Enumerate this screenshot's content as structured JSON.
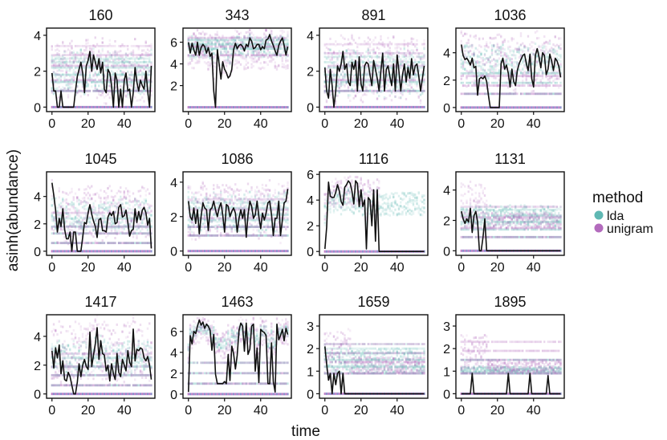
{
  "chart_data": {
    "type": "line",
    "xlabel": "time",
    "ylabel": "asinh(abundance)",
    "x_ticks": [
      0,
      20,
      40
    ],
    "xlim": [
      -3,
      57
    ],
    "legend": {
      "title": "method",
      "placement": "right",
      "entries": [
        {
          "name": "lda",
          "color": "#5fb8b3"
        },
        {
          "name": "unigram",
          "color": "#b36bbd"
        }
      ]
    },
    "line_color": "#111111",
    "panels": [
      {
        "title": "160",
        "ylim": [
          -0.25,
          4.4
        ],
        "y_ticks": [
          0,
          2,
          4
        ],
        "observed": [
          1.9,
          0.9,
          0.9,
          0,
          0,
          0.9,
          0,
          0,
          0,
          0,
          0,
          0,
          0,
          0.9,
          1.7,
          2.1,
          2.5,
          1.9,
          0.8,
          2.3,
          2.6,
          3.1,
          2.0,
          2.9,
          2.5,
          2.1,
          2.7,
          1.9,
          2.5,
          1.0,
          0.8,
          2.1,
          1.9,
          1.2,
          0,
          1.9,
          1.5,
          0,
          1.0,
          0,
          1.5,
          1.9,
          0.9,
          1.0,
          0,
          0.8,
          2.2,
          1.4,
          0.9,
          1.5,
          1.2,
          1.0,
          2.0,
          0.9,
          0,
          2.3
        ],
        "bands": [
          {
            "method": "lda",
            "levels": [
              0.9,
              1.4,
              1.8,
              2.2,
              2.5,
              2.7
            ]
          },
          {
            "method": "unigram",
            "levels": [
              0.9,
              1.5,
              2.3,
              2.9,
              3.4
            ]
          }
        ],
        "band_range": [
          {
            "method": "lda",
            "lo": 0.8,
            "hi": 3.1
          },
          {
            "method": "unigram",
            "lo": 0.5,
            "hi": 3.8
          }
        ]
      },
      {
        "title": "343",
        "ylim": [
          -0.4,
          7.3
        ],
        "y_ticks": [
          2,
          4,
          6
        ],
        "observed": [
          6.0,
          5.0,
          5.9,
          5.3,
          4.8,
          6.0,
          4.8,
          5.5,
          5.8,
          5.6,
          5.0,
          5.5,
          4.7,
          5.0,
          1.5,
          0,
          5.3,
          4.0,
          2.6,
          4.2,
          3.5,
          3.2,
          2.7,
          2.9,
          3.5,
          5.3,
          5.9,
          5.4,
          5.7,
          5.8,
          5.6,
          5.2,
          5.8,
          5.6,
          6.4,
          6.1,
          5.4,
          5.5,
          5.8,
          5.8,
          5.3,
          5.6,
          5.4,
          6.2,
          6.3,
          6.7,
          6.1,
          5.7,
          5.2,
          4.8,
          5.7,
          6.1,
          6.4,
          5.7,
          4.8,
          5.6
        ],
        "bands": [
          {
            "method": "lda",
            "levels": [
              5.4,
              5.8,
              6.2
            ]
          },
          {
            "method": "unigram",
            "levels": [
              4.8,
              5.6,
              6.4
            ]
          }
        ],
        "band_range": [
          {
            "method": "lda",
            "lo": 4.6,
            "hi": 6.6
          },
          {
            "method": "unigram",
            "lo": 3.4,
            "hi": 7.0
          }
        ]
      },
      {
        "title": "891",
        "ylim": [
          -0.25,
          4.4
        ],
        "y_ticks": [
          0,
          2,
          4
        ],
        "observed": [
          2.2,
          0.9,
          0.5,
          2.1,
          1.2,
          0,
          0.9,
          2.3,
          2.0,
          2.4,
          3.1,
          2.1,
          2.4,
          1.4,
          1.2,
          2.5,
          2.1,
          2.6,
          0.9,
          2.8,
          1.3,
          0.9,
          2.3,
          2.5,
          2.4,
          1.8,
          1.2,
          2.6,
          2.1,
          1.6,
          0.9,
          2.0,
          3.0,
          0.9,
          2.1,
          2.3,
          1.7,
          1.2,
          2.4,
          0.9,
          2.9,
          2.0,
          0.9,
          1.8,
          2.4,
          1.4,
          2.2,
          1.6,
          2.7,
          1.8,
          2.3,
          2.4,
          1.7,
          0.9,
          1.6,
          2.3
        ],
        "bands": [
          {
            "method": "lda",
            "levels": [
              0.9,
              1.4,
              1.8,
              2.2,
              2.5,
              2.8
            ]
          },
          {
            "method": "unigram",
            "levels": [
              0.9,
              1.5,
              2.3,
              3.0,
              3.5
            ]
          }
        ],
        "band_range": [
          {
            "method": "lda",
            "lo": 0.8,
            "hi": 3.2
          },
          {
            "method": "unigram",
            "lo": 0.5,
            "hi": 4.0
          }
        ]
      },
      {
        "title": "1036",
        "ylim": [
          -0.3,
          5.8
        ],
        "y_ticks": [
          0,
          2,
          4
        ],
        "observed": [
          4.6,
          3.8,
          3.5,
          3.6,
          3.4,
          3.1,
          3.6,
          2.9,
          3.0,
          0.9,
          2.1,
          2.2,
          2.1,
          2.3,
          1.9,
          0.9,
          0,
          0,
          0,
          0,
          0,
          0,
          3.2,
          3.6,
          2.8,
          3.1,
          2.5,
          1.5,
          2.8,
          1.9,
          1.6,
          2.7,
          3.2,
          3.5,
          3.8,
          3.9,
          3.2,
          2.7,
          3.9,
          2.1,
          1.5,
          3.8,
          4.3,
          3.7,
          2.9,
          4.0,
          3.8,
          2.4,
          2.8,
          3.9,
          3.4,
          2.7,
          3.6,
          3.4,
          3.0,
          2.2
        ],
        "bands": [
          {
            "method": "lda",
            "levels": [
              1.0,
              1.8,
              2.5
            ]
          },
          {
            "method": "unigram",
            "levels": [
              1.0,
              1.6,
              2.3
            ]
          }
        ],
        "band_range": [
          {
            "method": "lda",
            "lo": 2.5,
            "hi": 4.6
          },
          {
            "method": "unigram",
            "lo": 1.5,
            "hi": 5.4
          }
        ]
      },
      {
        "title": "1045",
        "ylim": [
          -0.3,
          5.8
        ],
        "y_ticks": [
          0,
          2,
          4
        ],
        "observed": [
          5.0,
          4.1,
          3.0,
          1.4,
          2.4,
          1.8,
          3.1,
          1.6,
          0.9,
          0.9,
          1.4,
          0,
          1.4,
          1.4,
          0,
          0,
          0,
          1.0,
          2.1,
          2.0,
          2.8,
          3.4,
          2.7,
          2.2,
          1.8,
          1.0,
          2.3,
          2.4,
          1.5,
          1.5,
          1.4,
          2.5,
          2.8,
          2.6,
          2.9,
          2.0,
          2.1,
          3.2,
          3.4,
          2.5,
          2.6,
          3.0,
          2.1,
          1.1,
          1.5,
          1.6,
          3.1,
          2.1,
          2.9,
          2.3,
          3.0,
          3.2,
          2.8,
          1.9,
          2.4,
          0.2
        ],
        "bands": [
          {
            "method": "lda",
            "levels": [
              0.6,
              1.3,
              1.8,
              2.4
            ]
          },
          {
            "method": "unigram",
            "levels": [
              0.6,
              1.3,
              1.8,
              2.8
            ]
          }
        ],
        "band_range": [
          {
            "method": "lda",
            "lo": 1.5,
            "hi": 3.8
          },
          {
            "method": "unigram",
            "lo": 1.0,
            "hi": 4.8
          }
        ]
      },
      {
        "title": "1086",
        "ylim": [
          -0.25,
          4.6
        ],
        "y_ticks": [
          0,
          2,
          4
        ],
        "observed": [
          2.9,
          2.0,
          1.8,
          2.5,
          1.6,
          2.4,
          1.0,
          2.0,
          2.8,
          2.5,
          2.4,
          1.2,
          2.4,
          2.5,
          2.9,
          2.4,
          2.0,
          2.5,
          2.8,
          2.1,
          1.1,
          2.7,
          2.6,
          2.0,
          2.3,
          2.5,
          2.2,
          1.1,
          1.9,
          2.4,
          1.9,
          2.4,
          0.8,
          2.1,
          2.9,
          2.6,
          1.9,
          2.1,
          2.9,
          2.0,
          1.3,
          2.2,
          1.8,
          2.2,
          2.8,
          2.9,
          2.1,
          0.9,
          1.9,
          1.9,
          2.9,
          0.9,
          1.8,
          2.8,
          2.9,
          3.6
        ],
        "bands": [
          {
            "method": "lda",
            "levels": [
              0.9,
              1.4,
              1.8,
              2.1,
              2.5,
              2.8
            ]
          },
          {
            "method": "unigram",
            "levels": [
              0.9,
              1.4,
              1.9,
              2.4,
              3.0
            ]
          }
        ],
        "band_range": [
          {
            "method": "lda",
            "lo": 1.2,
            "hi": 3.3
          },
          {
            "method": "unigram",
            "lo": 0.8,
            "hi": 4.0
          }
        ]
      },
      {
        "title": "1116",
        "ylim": [
          -0.3,
          6.2
        ],
        "y_ticks": [
          0,
          2,
          4,
          6
        ],
        "observed": [
          0.2,
          1.9,
          5.4,
          4.3,
          4.2,
          4.2,
          4.6,
          5.2,
          4.7,
          3.9,
          3.6,
          5.0,
          5.2,
          5.5,
          5.3,
          4.7,
          3.7,
          5.5,
          5.3,
          3.5,
          4.8,
          3.5,
          4.0,
          0.2,
          4.2,
          4.0,
          2.0,
          4.8,
          0.8,
          4.8,
          0,
          0,
          0,
          0,
          0,
          0,
          0,
          0,
          0,
          0,
          0,
          0,
          0,
          0,
          0,
          0,
          0,
          0,
          0,
          0,
          0,
          0,
          0,
          0,
          0,
          0
        ],
        "bands": [],
        "band_range": [
          {
            "method": "lda",
            "lo": 2.8,
            "hi": 4.6
          },
          {
            "method": "unigram",
            "lo": 3.5,
            "hi": 5.7
          }
        ]
      },
      {
        "title": "1131",
        "ylim": [
          -0.3,
          5.2
        ],
        "y_ticks": [
          0,
          2,
          4
        ],
        "observed": [
          2.6,
          2.1,
          1.8,
          2.1,
          1.9,
          2.8,
          1.2,
          2.3,
          2.6,
          1.9,
          0,
          0,
          0.9,
          2.1,
          0,
          0,
          0,
          0,
          0,
          0,
          0,
          0,
          0,
          0,
          0,
          0,
          0,
          0,
          0,
          0,
          0,
          0,
          0,
          0,
          0,
          0,
          0,
          0,
          0,
          0,
          0,
          0,
          0,
          0,
          0,
          0,
          0,
          0,
          0,
          0,
          0,
          0,
          0,
          0,
          0,
          0
        ],
        "bands": [
          {
            "method": "lda",
            "levels": [
              0.9,
              1.4,
              1.9,
              2.3,
              2.7
            ]
          },
          {
            "method": "unigram",
            "levels": [
              0.9,
              1.5,
              2.2,
              2.9
            ]
          }
        ],
        "band_range": [
          {
            "method": "lda",
            "lo": 1.6,
            "hi": 3.0
          },
          {
            "method": "unigram",
            "lo": 1.4,
            "hi": 4.6
          }
        ]
      },
      {
        "title": "1417",
        "ylim": [
          -0.3,
          5.5
        ],
        "y_ticks": [
          0,
          2,
          4
        ],
        "observed": [
          3.0,
          1.8,
          3.2,
          2.5,
          3.4,
          1.4,
          2.3,
          1.0,
          0.9,
          1.5,
          1.2,
          0.6,
          0,
          0,
          0.8,
          2.1,
          1.2,
          2.0,
          2.4,
          1.9,
          1.7,
          4.3,
          1.9,
          2.7,
          3.5,
          4.6,
          2.4,
          3.7,
          2.8,
          2.7,
          1.6,
          2.0,
          0.9,
          2.1,
          1.4,
          1.0,
          2.8,
          1.5,
          1.2,
          2.4,
          2.0,
          1.6,
          3.0,
          2.2,
          1.9,
          4.5,
          2.3,
          3.1,
          3.0,
          3.2,
          3.1,
          2.5,
          2.3,
          2.6,
          2.0,
          1.0
        ],
        "bands": [
          {
            "method": "lda",
            "levels": [
              0.6,
              1.3,
              1.9,
              2.5
            ]
          },
          {
            "method": "unigram",
            "levels": [
              0.6,
              1.3,
              1.9,
              2.8
            ]
          }
        ],
        "band_range": [
          {
            "method": "lda",
            "lo": 1.6,
            "hi": 3.8
          },
          {
            "method": "unigram",
            "lo": 1.0,
            "hi": 5.2
          }
        ]
      },
      {
        "title": "1463",
        "ylim": [
          -0.4,
          7.6
        ],
        "y_ticks": [
          0,
          2,
          4,
          6
        ],
        "observed": [
          0.2,
          5.6,
          4.8,
          6.0,
          5.8,
          6.5,
          7.1,
          6.6,
          6.9,
          6.3,
          6.7,
          6.5,
          6.1,
          4.2,
          5.7,
          1.9,
          1.0,
          1.0,
          1.0,
          1.0,
          1.2,
          1.0,
          3.8,
          1.3,
          4.6,
          3.9,
          2.4,
          3.7,
          6.1,
          6.8,
          6.5,
          4.1,
          6.8,
          3.8,
          4.3,
          6.5,
          6.7,
          2.2,
          4.4,
          1.1,
          6.2,
          6.0,
          5.9,
          5.6,
          1.0,
          1.0,
          4.9,
          1.2,
          0.2,
          6.7,
          5.2,
          5.6,
          6.2,
          5.1,
          6.3,
          5.7
        ],
        "bands": [
          {
            "method": "lda",
            "levels": [
              1.0,
              2.0,
              3.0
            ]
          },
          {
            "method": "unigram",
            "levels": [
              1.0,
              2.0,
              3.0
            ]
          }
        ],
        "band_range": [
          {
            "method": "lda",
            "lo": 5.6,
            "hi": 6.6
          },
          {
            "method": "unigram",
            "lo": 4.6,
            "hi": 7.2
          }
        ]
      },
      {
        "title": "1659",
        "ylim": [
          -0.2,
          3.5
        ],
        "y_ticks": [
          0,
          1,
          2,
          3
        ],
        "observed": [
          2.1,
          1.3,
          0.6,
          0.9,
          0,
          0.9,
          0.4,
          0.9,
          1.0,
          0,
          0.9,
          0,
          0,
          0,
          0,
          0,
          0,
          0,
          0,
          0,
          0,
          0,
          0,
          0,
          0,
          0,
          0,
          0,
          0,
          0,
          0,
          0,
          0,
          0,
          0,
          0,
          0,
          0,
          0,
          0,
          0,
          0,
          0,
          0,
          0,
          0,
          0,
          0,
          0,
          0,
          0,
          0,
          0,
          0,
          0,
          0
        ],
        "bands": [
          {
            "method": "lda",
            "levels": [
              0.9,
              1.2,
              1.5,
              1.8,
              2.0,
              2.2
            ]
          },
          {
            "method": "unigram",
            "levels": [
              0.9,
              1.4,
              1.8,
              2.2
            ]
          }
        ],
        "band_range": [
          {
            "method": "lda",
            "lo": 0.9,
            "hi": 2.0
          },
          {
            "method": "unigram",
            "lo": 0.9,
            "hi": 3.0
          }
        ]
      },
      {
        "title": "1895",
        "ylim": [
          -0.2,
          3.5
        ],
        "y_ticks": [
          0,
          1,
          2,
          3
        ],
        "observed": [
          0,
          0,
          0,
          0,
          0,
          0,
          0.9,
          0,
          0,
          0,
          0,
          0,
          0,
          0,
          0,
          0,
          0,
          0,
          0,
          0,
          0,
          0,
          0,
          0,
          0,
          0,
          0.9,
          0,
          0,
          0,
          0,
          0,
          0,
          0,
          0,
          0,
          0,
          0,
          0.9,
          0,
          0,
          0,
          0,
          0,
          0,
          0,
          0,
          0,
          0.8,
          0,
          0,
          0,
          0,
          0,
          0,
          0
        ],
        "bands": [
          {
            "method": "lda",
            "levels": [
              0.9,
              1.5
            ]
          },
          {
            "method": "unigram",
            "levels": [
              0.9,
              1.5,
              1.9,
              2.3
            ]
          }
        ],
        "band_range": [
          {
            "method": "lda",
            "lo": 0.9,
            "hi": 1.2
          },
          {
            "method": "unigram",
            "lo": 0.9,
            "hi": 2.6
          }
        ]
      }
    ]
  }
}
